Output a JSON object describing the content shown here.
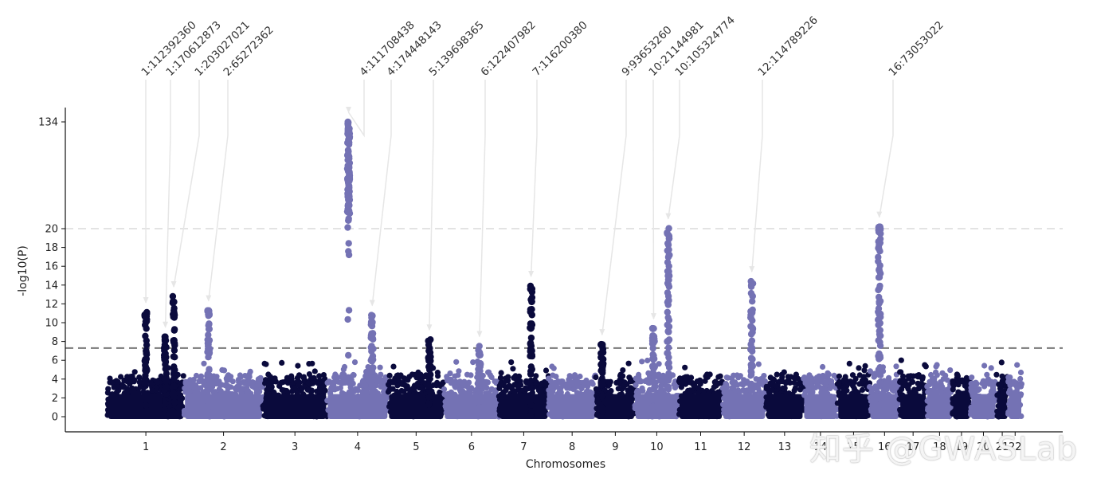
{
  "chart_data": {
    "type": "scatter",
    "subtype": "manhattan",
    "title": "",
    "xlabel": "Chromosomes",
    "ylabel": "-log10(P)",
    "yticks": [
      "0",
      "2",
      "4",
      "6",
      "8",
      "10",
      "12",
      "14",
      "16",
      "18",
      "20",
      "134"
    ],
    "y_scale": "broken: linear 0-20, compressed 20-134",
    "ylim": [
      0,
      134
    ],
    "suggestive_line": 7.3,
    "cap_line": 20,
    "colors": {
      "dark": "#0a0a3c",
      "light": "#7472b4",
      "threshold": "#777777",
      "cap": "#e3e3e3",
      "arrow": "#e6e6e6",
      "axis": "#111111"
    },
    "chromosomes": [
      {
        "label": "1",
        "color": "dark",
        "start": 0,
        "end": 11.0
      },
      {
        "label": "2",
        "color": "light",
        "start": 11.0,
        "end": 22.3
      },
      {
        "label": "3",
        "color": "dark",
        "start": 22.3,
        "end": 31.5
      },
      {
        "label": "4",
        "color": "light",
        "start": 31.5,
        "end": 40.3
      },
      {
        "label": "5",
        "color": "dark",
        "start": 40.3,
        "end": 48.3
      },
      {
        "label": "6",
        "color": "light",
        "start": 48.3,
        "end": 56.2
      },
      {
        "label": "7",
        "color": "dark",
        "start": 56.2,
        "end": 63.3
      },
      {
        "label": "8",
        "color": "light",
        "start": 63.3,
        "end": 70.1
      },
      {
        "label": "9",
        "color": "dark",
        "start": 70.1,
        "end": 75.7
      },
      {
        "label": "10",
        "color": "light",
        "start": 75.7,
        "end": 82.0
      },
      {
        "label": "11",
        "color": "dark",
        "start": 82.0,
        "end": 88.3
      },
      {
        "label": "12",
        "color": "light",
        "start": 88.3,
        "end": 94.5
      },
      {
        "label": "13",
        "color": "dark",
        "start": 94.5,
        "end": 99.9
      },
      {
        "label": "14",
        "color": "light",
        "start": 99.9,
        "end": 104.8
      },
      {
        "label": "15",
        "color": "dark",
        "start": 104.8,
        "end": 109.4
      },
      {
        "label": "16",
        "color": "light",
        "start": 109.4,
        "end": 113.7
      },
      {
        "label": "17",
        "color": "dark",
        "start": 113.7,
        "end": 117.6
      },
      {
        "label": "18",
        "color": "light",
        "start": 117.6,
        "end": 121.3
      },
      {
        "label": "19",
        "color": "dark",
        "start": 121.3,
        "end": 123.9
      },
      {
        "label": "20",
        "color": "light",
        "start": 123.9,
        "end": 127.6
      },
      {
        "label": "21",
        "color": "dark",
        "start": 127.6,
        "end": 129.3
      },
      {
        "label": "22",
        "color": "light",
        "start": 129.3,
        "end": 131.3
      }
    ],
    "peaks": [
      {
        "chr": "1",
        "pos": 5.5,
        "y": 11.1
      },
      {
        "chr": "1",
        "pos": 8.3,
        "y": 8.5
      },
      {
        "chr": "1",
        "pos": 9.5,
        "y": 12.8
      },
      {
        "chr": "2",
        "pos": 14.5,
        "y": 11.3
      },
      {
        "chr": "4",
        "pos": 34.6,
        "y": 134
      },
      {
        "chr": "4",
        "pos": 38.0,
        "y": 10.8
      },
      {
        "chr": "5",
        "pos": 46.2,
        "y": 8.2
      },
      {
        "chr": "6",
        "pos": 53.4,
        "y": 7.5
      },
      {
        "chr": "7",
        "pos": 60.8,
        "y": 13.9
      },
      {
        "chr": "9",
        "pos": 71.0,
        "y": 7.7
      },
      {
        "chr": "10",
        "pos": 78.4,
        "y": 9.4
      },
      {
        "chr": "10",
        "pos": 80.5,
        "y": 20.3
      },
      {
        "chr": "12",
        "pos": 92.5,
        "y": 14.4
      },
      {
        "chr": "16",
        "pos": 110.8,
        "y": 22
      }
    ],
    "annotations": [
      {
        "label": "1:112392360",
        "chr": "1",
        "pos": 5.5,
        "y": 11.1
      },
      {
        "label": "1:170612873",
        "chr": "1",
        "pos": 8.3,
        "y": 8.5
      },
      {
        "label": "1:203027021",
        "chr": "1",
        "pos": 9.5,
        "y": 12.8
      },
      {
        "label": "2:65272362",
        "chr": "2",
        "pos": 14.5,
        "y": 11.3
      },
      {
        "label": "4:111708438",
        "chr": "4",
        "pos": 34.6,
        "y": 134
      },
      {
        "label": "4:174448143",
        "chr": "4",
        "pos": 38.0,
        "y": 10.8
      },
      {
        "label": "5:139698365",
        "chr": "5",
        "pos": 46.2,
        "y": 8.2
      },
      {
        "label": "6:122407982",
        "chr": "6",
        "pos": 53.4,
        "y": 7.5
      },
      {
        "label": "7:116200380",
        "chr": "7",
        "pos": 60.8,
        "y": 13.9
      },
      {
        "label": "9:93653260",
        "chr": "9",
        "pos": 71.0,
        "y": 7.7
      },
      {
        "label": "10:21144981",
        "chr": "10",
        "pos": 78.4,
        "y": 9.4
      },
      {
        "label": "10:105324774",
        "chr": "10",
        "pos": 80.5,
        "y": 20.3
      },
      {
        "label": "12:114789226",
        "chr": "12",
        "pos": 92.5,
        "y": 14.4
      },
      {
        "label": "16:73053022",
        "chr": "16",
        "pos": 110.8,
        "y": 22
      }
    ],
    "grid": false,
    "legend": "none"
  },
  "watermark": "知乎 @GWASLab"
}
